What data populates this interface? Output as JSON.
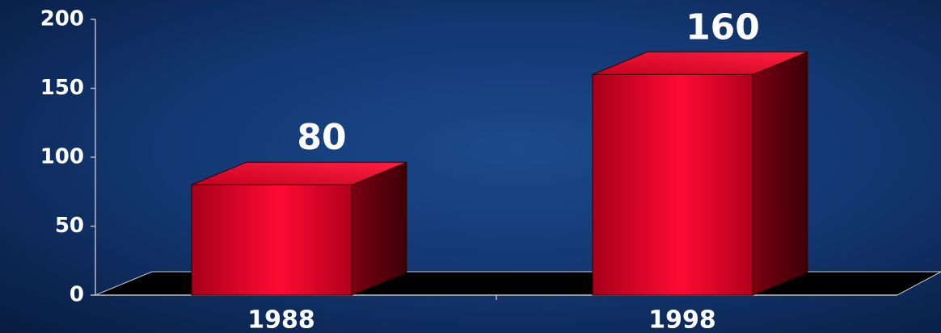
{
  "chart_data": {
    "type": "bar3d",
    "categories": [
      "1988",
      "1998"
    ],
    "values": [
      80,
      160
    ],
    "color": "#e8002a",
    "ylim": [
      0,
      200
    ],
    "yticks": [
      0,
      50,
      100,
      150,
      200
    ]
  }
}
